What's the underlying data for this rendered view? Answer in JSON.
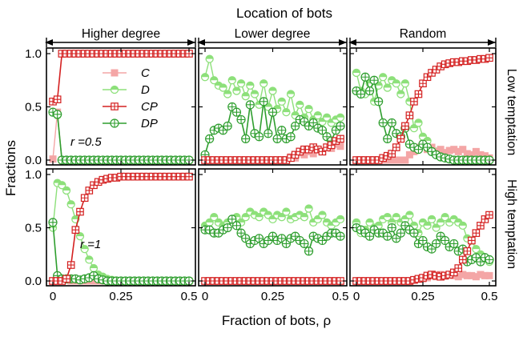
{
  "chart_data": {
    "type": "line",
    "title": "Location of bots",
    "col_headers": [
      "Higher degree",
      "Lower degree",
      "Random"
    ],
    "row_labels": [
      "Low temptation",
      "High temptation"
    ],
    "ylabel": "Fractions",
    "xlabel": "Fraction of bots, ρ",
    "xlim": [
      0,
      0.5
    ],
    "ylim": [
      0,
      1
    ],
    "xticks": [
      "0",
      "0.25",
      "0.5"
    ],
    "yticks": [
      "0.0",
      "0.5",
      "1.0"
    ],
    "annotations": {
      "r_low": "r =0.5",
      "r_high": "r =1"
    },
    "legend": [
      {
        "key": "C",
        "label": "C",
        "color": "#f4a6a6",
        "marker": "square"
      },
      {
        "key": "D",
        "label": "D",
        "color": "#8de07a",
        "marker": "circle-half"
      },
      {
        "key": "CP",
        "label": "CP",
        "color": "#d42020",
        "marker": "square-plus"
      },
      {
        "key": "DP",
        "label": "DP",
        "color": "#2e9e2e",
        "marker": "circle-plus"
      }
    ],
    "x": [
      0,
      0.0167,
      0.0333,
      0.05,
      0.0667,
      0.0833,
      0.1,
      0.1167,
      0.1333,
      0.15,
      0.1667,
      0.1833,
      0.2,
      0.2167,
      0.2333,
      0.25,
      0.2667,
      0.2833,
      0.3,
      0.3167,
      0.3333,
      0.35,
      0.3667,
      0.3833,
      0.4,
      0.4167,
      0.4333,
      0.45,
      0.4667,
      0.4833,
      0.5
    ],
    "panels": [
      {
        "row": 0,
        "col": 0,
        "series": {
          "C": [
            0.01,
            0.45,
            0,
            0,
            0,
            0,
            0,
            0,
            0,
            0,
            0,
            0,
            0,
            0,
            0,
            0,
            0,
            0,
            0,
            0,
            0,
            0,
            0,
            0,
            0,
            0,
            0,
            0,
            0,
            0,
            0
          ],
          "D": [
            0.45,
            0.42,
            0,
            0,
            0,
            0,
            0,
            0,
            0,
            0,
            0,
            0,
            0,
            0,
            0,
            0,
            0,
            0,
            0,
            0,
            0,
            0,
            0,
            0,
            0,
            0,
            0,
            0,
            0,
            0,
            0
          ],
          "CP": [
            0.55,
            0.57,
            1,
            1,
            1,
            1,
            1,
            1,
            1,
            1,
            1,
            1,
            1,
            1,
            1,
            1,
            1,
            1,
            1,
            1,
            1,
            1,
            1,
            1,
            1,
            1,
            1,
            1,
            1,
            1,
            1
          ],
          "DP": [
            0.45,
            0.43,
            0,
            0,
            0,
            0,
            0,
            0,
            0,
            0,
            0,
            0,
            0,
            0,
            0,
            0,
            0,
            0,
            0,
            0,
            0,
            0,
            0,
            0,
            0,
            0,
            0,
            0,
            0,
            0,
            0
          ]
        }
      },
      {
        "row": 0,
        "col": 1,
        "series": {
          "C": [
            0,
            0,
            0,
            0,
            0,
            0,
            0,
            0,
            0,
            0,
            0,
            0,
            0,
            0,
            0,
            0,
            0,
            0,
            0,
            0.03,
            0.02,
            0.07,
            0.05,
            0.08,
            0.06,
            0.1,
            0.08,
            0.12,
            0.11,
            0.15,
            0.13
          ],
          "D": [
            0.78,
            0.95,
            0.75,
            0.7,
            0.68,
            0.62,
            0.75,
            0.65,
            0.72,
            0.6,
            0.7,
            0.62,
            0.52,
            0.72,
            0.5,
            0.65,
            0.48,
            0.55,
            0.45,
            0.62,
            0.42,
            0.52,
            0.4,
            0.48,
            0.38,
            0.42,
            0.36,
            0.4,
            0.35,
            0.38,
            0.4
          ],
          "CP": [
            0,
            0,
            0,
            0,
            0,
            0,
            0,
            0,
            0,
            0,
            0,
            0,
            0,
            0,
            0,
            0,
            0,
            0,
            0,
            0.02,
            0.05,
            0.08,
            0.1,
            0.1,
            0.12,
            0.1,
            0.08,
            0.12,
            0.14,
            0.18,
            0.2
          ],
          "DP": [
            0.05,
            0.2,
            0.28,
            0.3,
            0.28,
            0.32,
            0.5,
            0.45,
            0.38,
            0.2,
            0.52,
            0.25,
            0.22,
            0.55,
            0.25,
            0.45,
            0.2,
            0.28,
            0.2,
            0.22,
            0.32,
            0.38,
            0.36,
            0.32,
            0.35,
            0.3,
            0.28,
            0.22,
            0.18,
            0.28,
            0.32
          ]
        }
      },
      {
        "row": 0,
        "col": 2,
        "series": {
          "C": [
            0,
            0,
            0,
            0,
            0,
            0,
            0,
            0,
            0,
            0,
            0,
            0,
            0.05,
            0.08,
            0.12,
            0.15,
            0.1,
            0.12,
            0.08,
            0.1,
            0.07,
            0.09,
            0.1,
            0.08,
            0.1,
            0.06,
            0.05,
            0.08,
            0.05,
            0.04,
            0.02
          ],
          "D": [
            0.82,
            0.65,
            0.62,
            0.72,
            0.55,
            0.7,
            0.78,
            0.68,
            0.75,
            0.72,
            0.62,
            0.72,
            0.55,
            0.3,
            0.35,
            0.22,
            0.18,
            0.1,
            0.08,
            0.05,
            0.02,
            0.01,
            0,
            0,
            0,
            0,
            0,
            0,
            0,
            0,
            0
          ],
          "CP": [
            0,
            0,
            0,
            0,
            0,
            0,
            0.02,
            0.04,
            0.06,
            0.12,
            0.2,
            0.32,
            0.42,
            0.55,
            0.62,
            0.72,
            0.78,
            0.82,
            0.85,
            0.88,
            0.9,
            0.91,
            0.92,
            0.92,
            0.93,
            0.93,
            0.94,
            0.94,
            0.95,
            0.95,
            0.96
          ],
          "DP": [
            0.65,
            0.62,
            0.78,
            0.65,
            0.75,
            0.55,
            0.35,
            0.2,
            0.35,
            0.25,
            0.22,
            0.3,
            0.15,
            0.12,
            0.1,
            0.15,
            0.12,
            0.08,
            0.05,
            0.03,
            0.02,
            0.01,
            0,
            0,
            0,
            0,
            0,
            0,
            0,
            0,
            0
          ]
        }
      },
      {
        "row": 1,
        "col": 0,
        "series": {
          "C": [
            0,
            0.01,
            0.01,
            0.01,
            0,
            0,
            0,
            0,
            0,
            0,
            0,
            0,
            0,
            0,
            0,
            0,
            0,
            0,
            0,
            0,
            0,
            0,
            0,
            0,
            0,
            0,
            0,
            0,
            0,
            0,
            0
          ],
          "D": [
            0.5,
            0.92,
            0.9,
            0.85,
            0.72,
            0.58,
            0.42,
            0.3,
            0.2,
            0.12,
            0.06,
            0.04,
            0.02,
            0.01,
            0,
            0,
            0,
            0,
            0,
            0,
            0,
            0,
            0,
            0,
            0,
            0,
            0,
            0,
            0,
            0,
            0
          ],
          "CP": [
            0,
            0,
            0,
            0.02,
            0.15,
            0.48,
            0.65,
            0.78,
            0.85,
            0.9,
            0.93,
            0.95,
            0.96,
            0.97,
            0.97,
            0.98,
            0.98,
            0.98,
            0.98,
            0.98,
            0.98,
            0.98,
            0.98,
            0.98,
            0.98,
            0.98,
            0.98,
            0.98,
            0.98,
            0.98,
            0.98
          ],
          "DP": [
            0.55,
            0.05,
            0.02,
            0.02,
            0.02,
            0.02,
            0.01,
            0.02,
            0.03,
            0.05,
            0.02,
            0.01,
            0,
            0,
            0,
            0,
            0,
            0,
            0,
            0,
            0,
            0,
            0,
            0,
            0,
            0,
            0,
            0,
            0,
            0,
            0
          ]
        }
      },
      {
        "row": 1,
        "col": 1,
        "series": {
          "C": [
            0,
            0,
            0,
            0,
            0,
            0,
            0,
            0,
            0,
            0,
            0,
            0,
            0,
            0,
            0,
            0,
            0,
            0,
            0,
            0,
            0,
            0,
            0,
            0,
            0,
            0,
            0,
            0,
            0,
            0,
            0
          ],
          "D": [
            0.52,
            0.55,
            0.6,
            0.55,
            0.52,
            0.55,
            0.58,
            0.6,
            0.55,
            0.6,
            0.65,
            0.62,
            0.6,
            0.65,
            0.62,
            0.58,
            0.62,
            0.6,
            0.65,
            0.58,
            0.6,
            0.62,
            0.6,
            0.68,
            0.55,
            0.58,
            0.62,
            0.55,
            0.52,
            0.55,
            0.58
          ],
          "CP": [
            0,
            0,
            0,
            0,
            0,
            0,
            0,
            0,
            0,
            0,
            0,
            0,
            0,
            0,
            0,
            0,
            0,
            0,
            0,
            0,
            0,
            0,
            0,
            0,
            0,
            0,
            0,
            0,
            0,
            0,
            0
          ],
          "DP": [
            0.48,
            0.48,
            0.45,
            0.45,
            0.48,
            0.5,
            0.58,
            0.52,
            0.45,
            0.4,
            0.35,
            0.38,
            0.4,
            0.35,
            0.38,
            0.42,
            0.38,
            0.4,
            0.35,
            0.4,
            0.42,
            0.38,
            0.35,
            0.28,
            0.42,
            0.4,
            0.38,
            0.42,
            0.45,
            0.45,
            0.42
          ]
        }
      },
      {
        "row": 1,
        "col": 2,
        "series": {
          "C": [
            0,
            0,
            0,
            0,
            0,
            0,
            0,
            0,
            0,
            0,
            0,
            0,
            0,
            0.01,
            0.02,
            0.02,
            0.03,
            0.05,
            0.04,
            0.06,
            0.05,
            0.06,
            0.05,
            0.04,
            0.06,
            0.05,
            0.05,
            0.04,
            0.06,
            0.05,
            0.05
          ],
          "D": [
            0.55,
            0.45,
            0.48,
            0.55,
            0.5,
            0.52,
            0.58,
            0.6,
            0.55,
            0.6,
            0.55,
            0.58,
            0.62,
            0.52,
            0.45,
            0.55,
            0.52,
            0.58,
            0.5,
            0.55,
            0.6,
            0.55,
            0.58,
            0.55,
            0.52,
            0.4,
            0.38,
            0.3,
            0.25,
            0.22,
            0.18
          ],
          "CP": [
            0,
            0,
            0,
            0,
            0,
            0,
            0,
            0,
            0,
            0,
            0,
            0,
            0,
            0.01,
            0.02,
            0.03,
            0.05,
            0.06,
            0.05,
            0.04,
            0.05,
            0.06,
            0.08,
            0.12,
            0.2,
            0.28,
            0.38,
            0.45,
            0.52,
            0.58,
            0.62
          ],
          "DP": [
            0.5,
            0.48,
            0.45,
            0.42,
            0.48,
            0.45,
            0.45,
            0.42,
            0.5,
            0.4,
            0.45,
            0.52,
            0.48,
            0.45,
            0.35,
            0.38,
            0.32,
            0.3,
            0.35,
            0.42,
            0.38,
            0.32,
            0.35,
            0.28,
            0.3,
            0.18,
            0.2,
            0.22,
            0.18,
            0.22,
            0.2
          ]
        }
      }
    ]
  }
}
